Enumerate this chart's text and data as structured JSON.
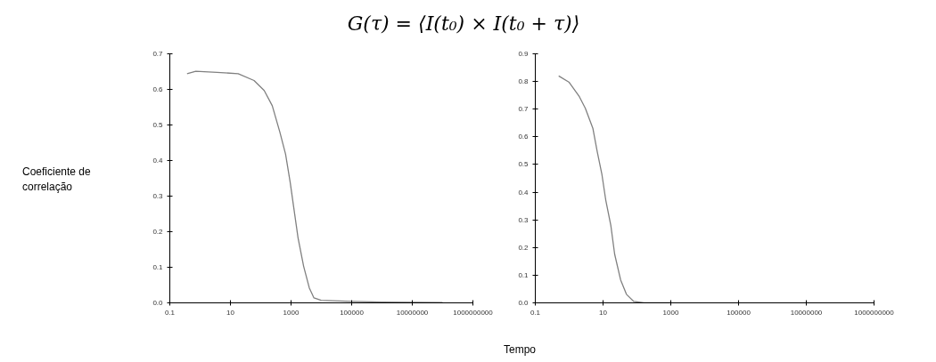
{
  "chart_data": [
    {
      "type": "line",
      "title": "G(τ) = ⟨I(t₀) × I(t₀ + τ)⟩",
      "ylabel": "Coeficiente de correlação",
      "log": "x",
      "grid": false,
      "marker": "none",
      "line_style": "solid",
      "xlim": [
        0.1,
        1000000000
      ],
      "xticks": [
        0.1,
        10,
        1000,
        100000,
        10000000,
        1000000000
      ],
      "ylim": [
        0,
        0.7
      ],
      "yticks": [
        {
          "value": 0,
          "label": "0.0"
        },
        0.1,
        0.2,
        0.3,
        0.4,
        0.5,
        0.6,
        0.7
      ],
      "series": [
        {
          "color": "#808080",
          "x": [
            0.37,
            0.72,
            3.6,
            18,
            60,
            130,
            240,
            430,
            660,
            940,
            1260,
            1700,
            2600,
            4000,
            5700,
            9800,
            100000,
            1000000,
            100000000
          ],
          "values": [
            0.644,
            0.651,
            0.648,
            0.644,
            0.625,
            0.597,
            0.554,
            0.479,
            0.418,
            0.338,
            0.261,
            0.183,
            0.103,
            0.042,
            0.014,
            0.007,
            0.004,
            0.002,
            0.001
          ]
        }
      ]
    },
    {
      "type": "line",
      "xlabel": "Tempo",
      "log": "x",
      "grid": false,
      "marker": "none",
      "line_style": "solid",
      "xlim": [
        0.1,
        1000000000
      ],
      "xticks": [
        0.1,
        10,
        1000,
        100000,
        10000000,
        1000000000
      ],
      "ylim": [
        0,
        0.9
      ],
      "yticks": [
        {
          "value": 0,
          "label": "0.0"
        },
        0.1,
        0.2,
        0.3,
        0.4,
        0.5,
        0.6,
        0.7,
        0.8,
        0.9
      ],
      "series": [
        {
          "color": "#808080",
          "x": [
            0.49,
            1.0,
            2.0,
            3.0,
            5.0,
            6.7,
            9.2,
            12,
            17,
            22,
            33,
            49,
            81,
            160,
            1000
          ],
          "values": [
            0.82,
            0.797,
            0.745,
            0.703,
            0.631,
            0.548,
            0.466,
            0.372,
            0.279,
            0.176,
            0.083,
            0.031,
            0.005,
            0.0,
            0.0
          ]
        }
      ]
    }
  ]
}
